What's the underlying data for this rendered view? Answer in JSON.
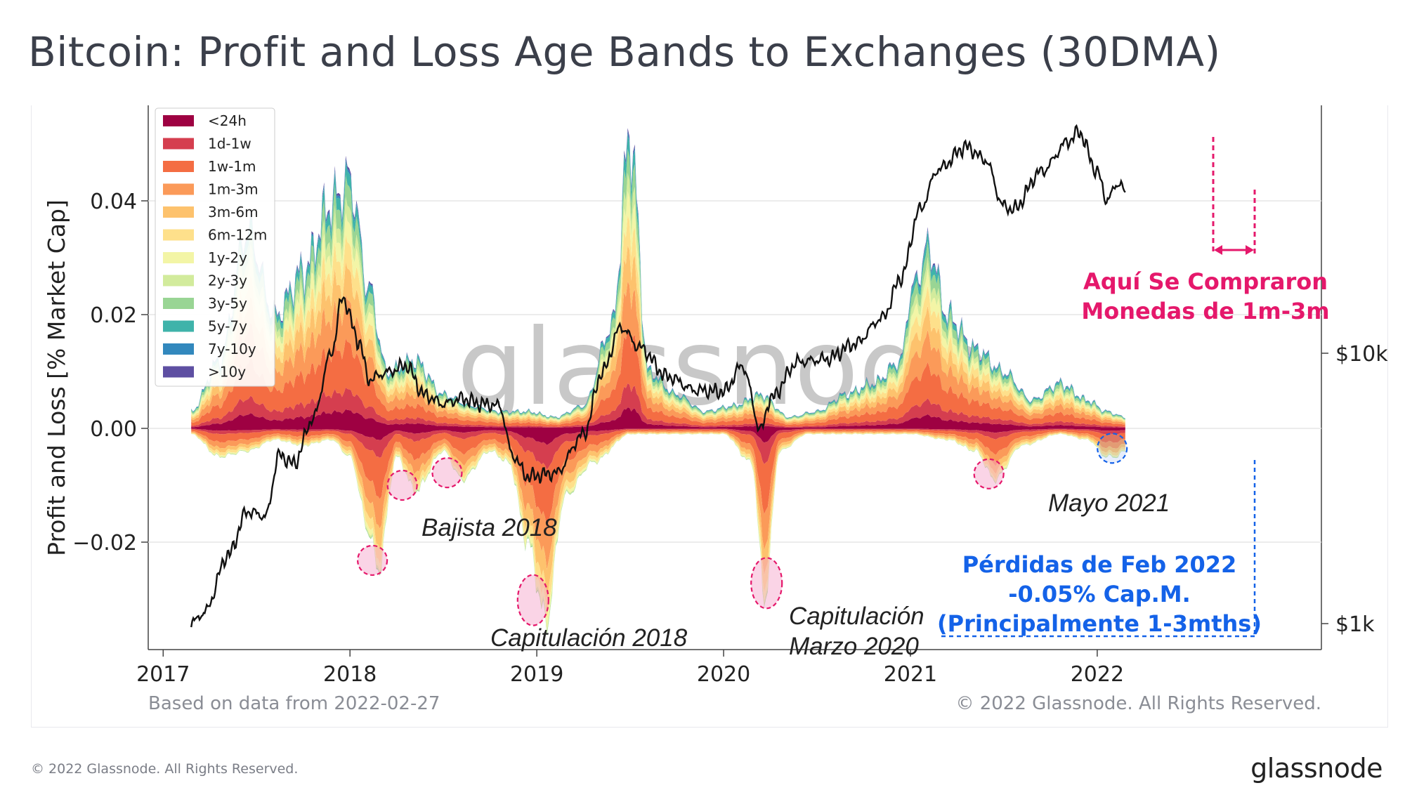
{
  "title": "Bitcoin: Profit and Loss Age Bands to Exchanges (30DMA)",
  "watermark": "glassnode",
  "footer": {
    "left": "© 2022 Glassnode. All Rights Reserved.",
    "logo": "glassnode"
  },
  "chart_data": {
    "type": "area",
    "ylabel": "Profit and Loss [% Market Cap]",
    "y_ticks": [
      "0.04",
      "0.02",
      "0.00",
      "−0.02"
    ],
    "y_tick_values": [
      0.04,
      0.02,
      0.0,
      -0.02
    ],
    "ylim": [
      -0.0375,
      0.053
    ],
    "x_ticks": [
      "2017",
      "2018",
      "2019",
      "2020",
      "2021",
      "2022"
    ],
    "x_tick_values": [
      2017,
      2018,
      2019,
      2020,
      2021,
      2022
    ],
    "xlim": [
      2016.92,
      2023.2
    ],
    "right_axis_ticks": [
      "$10k",
      "$1k"
    ],
    "right_axis_tick_values": [
      10000,
      1000
    ],
    "right_axis_scale": "log",
    "source_note": "Based on data from 2022-02-27",
    "copyright": "© 2022 Glassnode. All Rights Reserved.",
    "legend_position": "top-left",
    "bands": [
      {
        "name": "<24h",
        "color": "#9e0142"
      },
      {
        "name": "1d-1w",
        "color": "#d53e4f"
      },
      {
        "name": "1w-1m",
        "color": "#f46d43"
      },
      {
        "name": "1m-3m",
        "color": "#fb9a59"
      },
      {
        "name": "3m-6m",
        "color": "#fdc26d"
      },
      {
        "name": "6m-12m",
        "color": "#fee08b"
      },
      {
        "name": "1y-2y",
        "color": "#f3f5a6"
      },
      {
        "name": "2y-3y",
        "color": "#d2eb9c"
      },
      {
        "name": "3y-5y",
        "color": "#99d594"
      },
      {
        "name": "5y-7y",
        "color": "#3fb3aa"
      },
      {
        "name": "7y-10y",
        "color": "#3288bd"
      },
      {
        "name": ">10y",
        "color": "#5e4fa2"
      }
    ],
    "profit_envelope": {
      "x": [
        2017.15,
        2017.3,
        2017.45,
        2017.6,
        2017.75,
        2017.9,
        2018.0,
        2018.1,
        2018.2,
        2018.35,
        2018.5,
        2018.65,
        2018.8,
        2018.95,
        2019.1,
        2019.25,
        2019.4,
        2019.5,
        2019.6,
        2019.75,
        2019.9,
        2020.05,
        2020.2,
        2020.35,
        2020.5,
        2020.65,
        2020.8,
        2020.95,
        2021.0,
        2021.1,
        2021.2,
        2021.35,
        2021.5,
        2021.65,
        2021.8,
        2021.95,
        2022.05,
        2022.15
      ],
      "y": [
        0.003,
        0.012,
        0.035,
        0.02,
        0.028,
        0.04,
        0.044,
        0.025,
        0.01,
        0.012,
        0.006,
        0.004,
        0.003,
        0.003,
        0.002,
        0.004,
        0.018,
        0.052,
        0.01,
        0.006,
        0.003,
        0.004,
        0.006,
        0.002,
        0.003,
        0.006,
        0.008,
        0.012,
        0.024,
        0.032,
        0.02,
        0.014,
        0.01,
        0.005,
        0.008,
        0.005,
        0.003,
        0.002
      ]
    },
    "loss_envelope": {
      "x": [
        2017.15,
        2017.3,
        2017.45,
        2017.6,
        2017.75,
        2017.9,
        2018.0,
        2018.1,
        2018.15,
        2018.25,
        2018.35,
        2018.5,
        2018.6,
        2018.75,
        2018.85,
        2018.95,
        2019.05,
        2019.15,
        2019.3,
        2019.5,
        2019.75,
        2020.0,
        2020.15,
        2020.22,
        2020.3,
        2020.45,
        2020.7,
        2021.0,
        2021.2,
        2021.35,
        2021.45,
        2021.6,
        2021.8,
        2021.95,
        2022.05,
        2022.1,
        2022.15
      ],
      "y": [
        -0.001,
        -0.005,
        -0.004,
        -0.002,
        -0.003,
        -0.002,
        -0.005,
        -0.018,
        -0.025,
        -0.005,
        -0.011,
        -0.004,
        -0.009,
        -0.004,
        -0.006,
        -0.02,
        -0.034,
        -0.012,
        -0.006,
        -0.001,
        -0.001,
        -0.001,
        -0.006,
        -0.03,
        -0.004,
        -0.001,
        -0.001,
        -0.001,
        -0.002,
        -0.004,
        -0.009,
        -0.003,
        -0.001,
        -0.002,
        -0.005,
        -0.005,
        -0.004
      ]
    },
    "price_series": {
      "name": "BTC price (USD)",
      "x": [
        2017.15,
        2017.22,
        2017.35,
        2017.45,
        2017.55,
        2017.62,
        2017.7,
        2017.8,
        2017.9,
        2017.96,
        2018.05,
        2018.1,
        2018.2,
        2018.3,
        2018.4,
        2018.5,
        2018.6,
        2018.7,
        2018.8,
        2018.87,
        2018.95,
        2019.1,
        2019.25,
        2019.35,
        2019.45,
        2019.55,
        2019.7,
        2019.85,
        2020.0,
        2020.1,
        2020.2,
        2020.25,
        2020.4,
        2020.55,
        2020.7,
        2020.85,
        2020.95,
        2021.05,
        2021.15,
        2021.3,
        2021.4,
        2021.5,
        2021.55,
        2021.7,
        2021.85,
        2021.9,
        2022.0,
        2022.05,
        2022.12,
        2022.15
      ],
      "y": [
        1000,
        1100,
        1800,
        2600,
        2500,
        4200,
        3900,
        5700,
        10000,
        16000,
        11000,
        8000,
        8500,
        9000,
        7000,
        6500,
        6800,
        6500,
        6400,
        4200,
        3500,
        3600,
        5000,
        8500,
        12500,
        10500,
        8200,
        7300,
        7200,
        9000,
        5200,
        6800,
        9300,
        9500,
        10800,
        13500,
        19000,
        34000,
        48000,
        58000,
        52000,
        35000,
        34000,
        47000,
        61000,
        66000,
        47000,
        37000,
        43000,
        39000
      ]
    },
    "annotations": [
      {
        "text": "Bajista 2018",
        "style": "dark-italic"
      },
      {
        "text": "Capitulación 2018",
        "style": "dark-italic"
      },
      {
        "text": "Capitulación",
        "style": "dark-italic"
      },
      {
        "text": "Marzo 2020",
        "style": "dark-italic"
      },
      {
        "text": "Mayo 2021",
        "style": "dark-italic"
      },
      {
        "text": "Aquí Se Compraron",
        "style": "pink-bold",
        "color": "#e5186b"
      },
      {
        "text": "Monedas de 1m-3m",
        "style": "pink-bold",
        "color": "#e5186b"
      },
      {
        "text": "Pérdidas de Feb 2022",
        "style": "blue-bold",
        "color": "#1462e8"
      },
      {
        "text": "-0.05% Cap.M.",
        "style": "blue-bold",
        "color": "#1462e8"
      },
      {
        "text": "(Principalmente 1-3mths)",
        "style": "blue-bold",
        "color": "#1462e8"
      }
    ],
    "highlight_circles": [
      {
        "x": 2018.12,
        "y": -0.0232
      },
      {
        "x": 2018.28,
        "y": -0.01
      },
      {
        "x": 2018.52,
        "y": -0.0078
      },
      {
        "x": 2018.98,
        "y": -0.0302
      },
      {
        "x": 2020.23,
        "y": -0.0272
      },
      {
        "x": 2021.42,
        "y": -0.008
      },
      {
        "x": 2022.08,
        "y": -0.0035
      }
    ]
  }
}
